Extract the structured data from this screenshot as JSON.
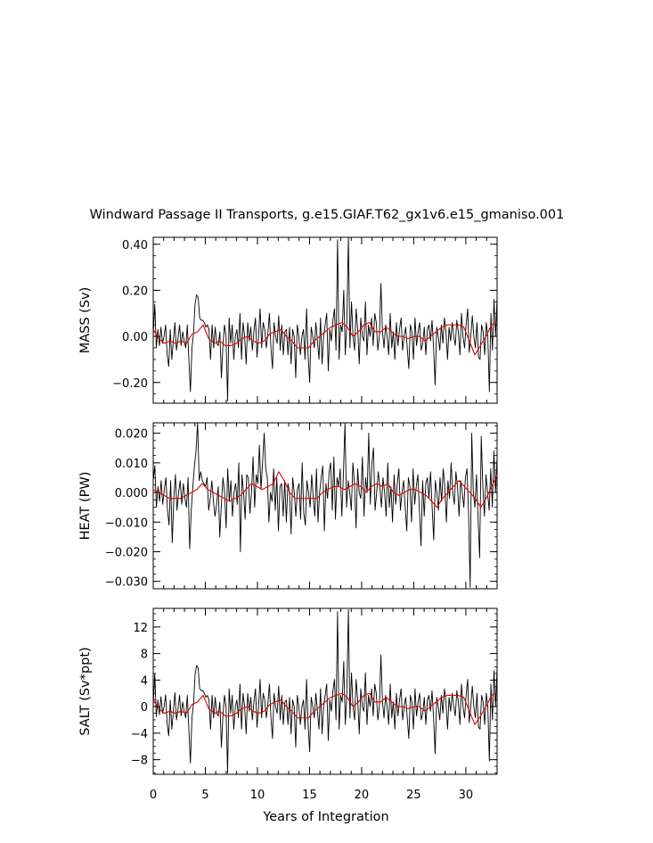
{
  "title": "Windward Passage II Transports, g.e15.GIAF.T62_gx1v6.e15_gmaniso.001",
  "xlabel": "Years of Integration",
  "x_ticks": [
    "0",
    "5",
    "10",
    "15",
    "20",
    "25",
    "30"
  ],
  "colors": {
    "raw": "#000000",
    "smoothed": "#e00000"
  },
  "chart_data": [
    {
      "type": "line",
      "ylabel": "MASS (Sv)",
      "ylim": [
        -0.29,
        0.43
      ],
      "xlim": [
        0,
        33
      ],
      "y_ticks": [
        0.4,
        0.2,
        0.0,
        -0.2
      ],
      "y_tick_labels": [
        "0.40",
        "0.20",
        "0.00",
        "−0.20"
      ],
      "series": [
        {
          "values": [
            0.0,
            0.14,
            -0.05,
            0.03,
            -0.04,
            0.04,
            -0.03,
            0.0,
            0.05,
            -0.08,
            -0.13,
            0.03,
            -0.1,
            -0.02,
            0.06,
            -0.06,
            -0.01,
            0.05,
            -0.04,
            0.02,
            -0.02,
            -0.05,
            0.05,
            -0.1,
            -0.24,
            -0.05,
            0.01,
            0.14,
            0.18,
            0.17,
            0.08,
            0.07,
            0.07,
            0.06,
            0.04,
            0.05,
            0.03,
            -0.1,
            0.05,
            -0.05,
            0.04,
            -0.03,
            -0.04,
            0.02,
            -0.18,
            -0.04,
            0.05,
            0.0,
            -0.28,
            0.08,
            -0.03,
            0.05,
            -0.1,
            0.0,
            0.03,
            -0.05,
            0.1,
            -0.1,
            0.06,
            0.0,
            -0.12,
            0.06,
            -0.02,
            0.04,
            -0.06,
            0.02,
            0.08,
            -0.09,
            0.0,
            0.12,
            -0.05,
            0.06,
            0.03,
            -0.05,
            0.01,
            0.1,
            -0.05,
            -0.14,
            0.06,
            0.0,
            -0.03,
            0.09,
            -0.06,
            0.05,
            -0.08,
            0.02,
            0.03,
            -0.08,
            0.04,
            -0.12,
            0.03,
            0.0,
            -0.18,
            0.05,
            0.0,
            -0.08,
            0.0,
            0.03,
            -0.1,
            0.12,
            -0.08,
            -0.2,
            0.04,
            0.0,
            -0.05,
            0.06,
            -0.02,
            -0.1,
            0.08,
            -0.12,
            0.0,
            0.05,
            0.1,
            -0.15,
            0.03,
            -0.02,
            0.07,
            0.12,
            -0.06,
            0.42,
            -0.1,
            0.05,
            0.02,
            0.2,
            -0.08,
            0.06,
            0.43,
            -0.05,
            0.15,
            0.0,
            -0.06,
            0.12,
            0.03,
            -0.12,
            0.08,
            0.0,
            -0.02,
            0.15,
            -0.08,
            0.05,
            0.0,
            0.08,
            -0.04,
            0.1,
            0.06,
            -0.06,
            0.0,
            0.23,
            0.02,
            -0.05,
            0.05,
            0.0,
            -0.08,
            0.1,
            -0.05,
            0.02,
            -0.1,
            0.06,
            -0.04,
            0.03,
            0.08,
            -0.06,
            0.0,
            0.04,
            -0.05,
            -0.14,
            0.05,
            0.02,
            -0.1,
            0.08,
            -0.04,
            0.02,
            0.06,
            -0.06,
            -0.03,
            0.04,
            -0.08,
            0.03,
            0.05,
            -0.02,
            0.07,
            -0.05,
            -0.21,
            0.04,
            0.0,
            -0.06,
            0.05,
            -0.03,
            0.08,
            0.02,
            -0.1,
            0.04,
            -0.02,
            0.06,
            0.0,
            -0.04,
            0.07,
            0.02,
            -0.08,
            0.1,
            0.0,
            -0.05,
            0.05,
            0.12,
            -0.07,
            0.0,
            0.09,
            0.0,
            -0.05,
            0.06,
            -0.09,
            -0.1,
            0.05,
            0.02,
            -0.08,
            0.06,
            0.0,
            -0.24,
            0.1,
            -0.06,
            0.16,
            0.0,
            0.17
          ]
        },
        {
          "values": [
            0.03,
            -0.01,
            -0.03,
            -0.02,
            -0.03,
            -0.02,
            -0.03,
            0.01,
            0.02,
            0.05,
            -0.01,
            -0.03,
            -0.02,
            -0.04,
            -0.04,
            -0.03,
            -0.01,
            0.0,
            -0.02,
            -0.03,
            -0.02,
            0.01,
            0.02,
            0.03,
            0.0,
            -0.02,
            -0.05,
            -0.05,
            -0.05,
            -0.02,
            0.0,
            0.02,
            0.04,
            0.05,
            0.06,
            0.04,
            0.0,
            0.02,
            0.05,
            0.06,
            0.02,
            0.02,
            0.04,
            0.02,
            0.0,
            0.0,
            -0.01,
            0.0,
            0.0,
            -0.02,
            0.0,
            0.02,
            0.04,
            0.05,
            0.05,
            0.05,
            0.04,
            -0.02,
            -0.08,
            -0.04,
            0.0,
            0.05,
            0.06
          ]
        }
      ]
    },
    {
      "type": "line",
      "ylabel": "HEAT (PW)",
      "ylim": [
        -0.0325,
        0.0235
      ],
      "xlim": [
        0,
        33
      ],
      "y_ticks": [
        0.02,
        0.01,
        0.0,
        -0.01,
        -0.02,
        -0.03
      ],
      "y_tick_labels": [
        "0.020",
        "0.010",
        "0.000",
        "−0.010",
        "−0.020",
        "−0.030"
      ],
      "series": [
        {
          "values": [
            0.004,
            0.009,
            -0.005,
            0.002,
            -0.003,
            0.004,
            -0.004,
            0.001,
            0.005,
            -0.006,
            -0.011,
            0.004,
            -0.017,
            -0.002,
            0.006,
            -0.006,
            0.0,
            0.004,
            -0.004,
            0.003,
            -0.002,
            -0.005,
            0.005,
            -0.019,
            -0.006,
            0.002,
            0.009,
            0.014,
            0.024,
            0.004,
            0.007,
            0.004,
            0.003,
            0.002,
            0.005,
            -0.006,
            -0.002,
            0.004,
            -0.003,
            -0.008,
            -0.004,
            0.002,
            -0.015,
            -0.004,
            0.005,
            0.0,
            -0.012,
            0.008,
            -0.003,
            0.004,
            -0.008,
            0.0,
            0.003,
            -0.004,
            0.01,
            -0.02,
            0.006,
            0.0,
            -0.009,
            0.006,
            0.005,
            -0.007,
            0.0,
            0.012,
            -0.005,
            0.006,
            0.003,
            0.016,
            0.001,
            0.01,
            0.02,
            0.008,
            0.005,
            -0.01,
            0.0,
            -0.003,
            0.008,
            -0.006,
            0.005,
            -0.013,
            0.002,
            0.003,
            -0.008,
            0.004,
            -0.01,
            0.003,
            0.0,
            -0.014,
            0.005,
            0.0,
            -0.008,
            0.001,
            0.003,
            -0.009,
            0.01,
            -0.007,
            -0.011,
            0.004,
            0.0,
            -0.005,
            0.006,
            -0.002,
            -0.008,
            0.008,
            -0.01,
            0.0,
            0.005,
            0.009,
            -0.013,
            0.003,
            -0.002,
            0.007,
            0.01,
            -0.006,
            0.012,
            -0.009,
            0.005,
            0.002,
            0.008,
            -0.008,
            0.006,
            0.024,
            -0.005,
            0.004,
            0.0,
            -0.006,
            0.01,
            0.003,
            -0.012,
            0.008,
            0.0,
            -0.002,
            0.012,
            -0.008,
            0.005,
            0.0,
            0.02,
            -0.004,
            0.01,
            0.015,
            -0.006,
            0.0,
            0.007,
            0.002,
            -0.005,
            0.005,
            0.0,
            -0.008,
            0.01,
            -0.005,
            0.002,
            -0.01,
            0.006,
            -0.004,
            0.003,
            0.008,
            -0.006,
            0.0,
            0.004,
            -0.005,
            -0.013,
            0.005,
            0.002,
            -0.01,
            0.008,
            -0.004,
            0.002,
            0.006,
            -0.006,
            -0.018,
            0.004,
            -0.008,
            0.003,
            0.005,
            -0.002,
            0.007,
            -0.005,
            -0.016,
            0.004,
            0.0,
            -0.006,
            0.005,
            -0.003,
            0.008,
            0.002,
            -0.01,
            0.004,
            -0.002,
            0.01,
            0.0,
            -0.004,
            0.007,
            0.002,
            -0.008,
            0.004,
            0.0,
            -0.005,
            0.005,
            0.008,
            -0.007,
            -0.032,
            0.02,
            0.0,
            -0.005,
            0.006,
            -0.009,
            -0.022,
            0.019,
            0.002,
            -0.008,
            0.006,
            0.0,
            -0.006,
            0.008,
            -0.005,
            0.014,
            0.0,
            0.012
          ]
        },
        {
          "values": [
            0.001,
            0.0,
            -0.001,
            -0.002,
            -0.002,
            -0.002,
            -0.001,
            0.0,
            0.001,
            0.003,
            0.001,
            0.0,
            -0.001,
            -0.002,
            -0.003,
            -0.002,
            -0.001,
            0.001,
            0.003,
            0.002,
            0.001,
            0.002,
            0.003,
            0.007,
            0.004,
            0.0,
            -0.002,
            -0.002,
            -0.002,
            -0.002,
            -0.002,
            0.0,
            0.001,
            0.002,
            0.002,
            0.001,
            0.002,
            0.003,
            0.002,
            0.0,
            0.002,
            0.003,
            0.002,
            0.003,
            0.0,
            -0.001,
            0.0,
            0.001,
            0.001,
            0.0,
            -0.001,
            -0.003,
            -0.005,
            -0.002,
            0.0,
            0.002,
            0.004,
            0.002,
            0.0,
            -0.002,
            -0.005,
            -0.002,
            0.002,
            0.006
          ]
        }
      ]
    },
    {
      "type": "line",
      "ylabel": "SALT (Sv*ppt)",
      "ylim": [
        -10.2,
        14.8
      ],
      "xlim": [
        0,
        33
      ],
      "y_ticks": [
        12,
        8,
        4,
        0,
        -4,
        -8
      ],
      "y_tick_labels": [
        "12",
        "8",
        "4",
        "0",
        "−4",
        "−8"
      ],
      "series": [
        {
          "values": [
            0.0,
            5.0,
            -1.5,
            1.0,
            -1.2,
            1.5,
            -1.0,
            0.0,
            1.8,
            -2.6,
            -4.4,
            1.0,
            -3.4,
            -0.7,
            2.1,
            -2.0,
            -0.4,
            1.7,
            -1.4,
            0.7,
            -0.7,
            -1.7,
            1.7,
            -3.4,
            -8.5,
            -1.7,
            0.4,
            4.8,
            6.2,
            5.8,
            2.7,
            2.4,
            2.4,
            2.0,
            1.4,
            1.7,
            1.0,
            -3.4,
            1.7,
            -1.7,
            1.4,
            -1.0,
            -1.4,
            0.7,
            -6.1,
            -1.4,
            1.7,
            0.0,
            -10.0,
            2.7,
            -1.0,
            1.7,
            -3.4,
            0.0,
            1.0,
            -1.7,
            3.4,
            -3.4,
            2.0,
            0.0,
            -4.1,
            2.0,
            -0.7,
            1.4,
            -2.0,
            0.7,
            2.7,
            -3.1,
            0.0,
            4.1,
            -1.7,
            2.0,
            1.0,
            -1.7,
            0.4,
            3.4,
            -1.7,
            -4.8,
            2.0,
            0.0,
            -1.0,
            3.1,
            -2.0,
            1.7,
            -2.7,
            0.7,
            1.0,
            -2.7,
            1.4,
            -4.1,
            1.0,
            0.0,
            -6.1,
            1.7,
            0.0,
            -2.7,
            0.0,
            1.0,
            -3.4,
            4.1,
            -2.7,
            -6.8,
            1.4,
            0.0,
            -1.7,
            2.0,
            -0.7,
            -3.4,
            2.7,
            -4.1,
            0.0,
            1.7,
            3.4,
            -5.1,
            1.0,
            -0.7,
            2.4,
            4.1,
            -2.0,
            14.3,
            -3.4,
            1.7,
            0.7,
            6.8,
            -2.7,
            2.0,
            14.6,
            -1.7,
            5.1,
            0.0,
            -2.0,
            4.1,
            1.0,
            -4.1,
            2.7,
            0.0,
            -0.7,
            5.1,
            -2.7,
            1.7,
            0.0,
            2.7,
            -1.4,
            3.4,
            2.0,
            -2.0,
            0.0,
            7.8,
            0.7,
            -1.7,
            1.7,
            0.0,
            -2.7,
            3.4,
            -1.7,
            0.7,
            -3.4,
            2.0,
            -1.4,
            1.0,
            2.7,
            -2.0,
            0.0,
            1.4,
            -1.7,
            -4.8,
            1.7,
            0.7,
            -3.4,
            2.7,
            -1.4,
            0.7,
            2.0,
            -2.0,
            -1.0,
            1.4,
            -2.7,
            1.0,
            1.7,
            -0.7,
            2.4,
            -1.7,
            -7.1,
            1.4,
            0.0,
            -2.0,
            1.7,
            -1.0,
            2.7,
            0.7,
            -3.4,
            1.4,
            -0.7,
            2.0,
            0.0,
            -1.4,
            2.4,
            0.7,
            -2.7,
            3.4,
            0.0,
            -1.7,
            1.7,
            4.1,
            -2.4,
            0.0,
            3.1,
            0.0,
            -1.7,
            2.0,
            -3.1,
            -3.4,
            1.7,
            0.7,
            -2.7,
            2.0,
            0.0,
            -8.2,
            3.4,
            -2.0,
            5.4,
            0.0,
            5.8
          ]
        },
        {
          "values": [
            1.0,
            -0.3,
            -1.0,
            -0.7,
            -1.0,
            -0.7,
            -1.0,
            0.3,
            0.7,
            1.7,
            -0.3,
            -1.0,
            -0.7,
            -1.4,
            -1.4,
            -1.0,
            -0.3,
            0.0,
            -0.7,
            -1.0,
            -0.7,
            0.3,
            0.7,
            1.0,
            0.0,
            -0.7,
            -1.7,
            -1.7,
            -1.7,
            -0.7,
            0.0,
            0.7,
            1.4,
            1.7,
            2.0,
            1.4,
            0.0,
            0.7,
            1.7,
            2.0,
            0.7,
            0.7,
            1.4,
            0.7,
            0.0,
            0.0,
            -0.3,
            0.0,
            0.0,
            -0.7,
            0.0,
            0.7,
            1.4,
            1.7,
            1.7,
            1.7,
            1.4,
            -0.7,
            -2.7,
            -1.4,
            0.0,
            1.7,
            2.0
          ]
        }
      ]
    }
  ]
}
